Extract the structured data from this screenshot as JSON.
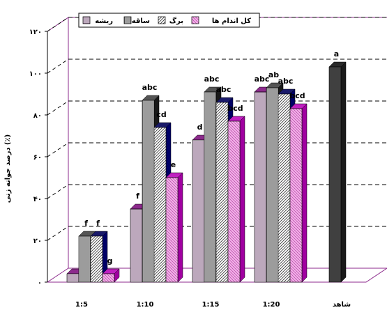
{
  "chart_data": {
    "type": "bar",
    "ylabel": "درصد جوانه زنی (٪)",
    "ylim": [
      0,
      120
    ],
    "yticks": [
      "۰",
      "۲۰",
      "۴۰",
      "۶۰",
      "۸۰",
      "۱۰۰",
      "۱۲۰"
    ],
    "categories": [
      "1:5",
      "1:10",
      "1:15",
      "1:20",
      "شاهد"
    ],
    "legend_position": "top-left",
    "grid": "dashed horizontal",
    "series": [
      {
        "name": "ریشه",
        "values": [
          4,
          35,
          68,
          91,
          null
        ],
        "labels": [
          "",
          "f",
          "d",
          "abc",
          ""
        ],
        "color": "#ffffff",
        "pattern": "hlines"
      },
      {
        "name": "ساقه",
        "values": [
          22,
          87,
          91,
          93,
          null
        ],
        "labels": [
          "f",
          "abc",
          "abc",
          "ab",
          ""
        ],
        "color": "#ffffff",
        "pattern": "vlines"
      },
      {
        "name": "برگ",
        "values": [
          22,
          74,
          86,
          90,
          null
        ],
        "labels": [
          "f",
          "cd",
          "abc",
          "abc",
          ""
        ],
        "color": "#ffffff",
        "pattern": "diag"
      },
      {
        "name": "کل اندام ها",
        "values": [
          4,
          50,
          77,
          83,
          null
        ],
        "labels": [
          "g",
          "e",
          "bcd",
          "bcd",
          ""
        ],
        "color": "#f2a6e6",
        "pattern": "pinkdiag"
      },
      {
        "name": "",
        "values": [
          null,
          null,
          null,
          null,
          103
        ],
        "labels": [
          "",
          "",
          "",
          "",
          "a"
        ],
        "color": "#404040",
        "pattern": "solid"
      }
    ]
  },
  "legend": {
    "items": [
      "ریشه",
      "ساقه",
      "برگ",
      "کل اندام ها"
    ]
  }
}
